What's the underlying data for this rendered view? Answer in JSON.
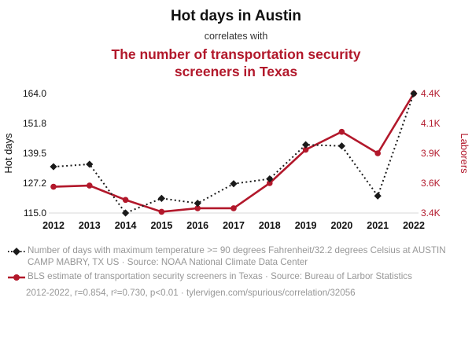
{
  "header": {
    "title": "Hot days in Austin",
    "subtitle": "correlates with",
    "red_title": "The number of transportation security screeners in Texas"
  },
  "colors": {
    "accent_red": "#b2182b",
    "series_black": "#1a1a1a",
    "muted_gray": "#979797"
  },
  "chart_data": {
    "type": "line",
    "title": "Hot days in Austin correlates with the number of transportation security screeners in Texas",
    "x": [
      2012,
      2013,
      2014,
      2015,
      2016,
      2017,
      2018,
      2019,
      2020,
      2021,
      2022
    ],
    "x_ticks": [
      "2012",
      "2013",
      "2014",
      "2015",
      "2016",
      "2017",
      "2018",
      "2019",
      "2020",
      "2021",
      "2022"
    ],
    "series": [
      {
        "name": "Hot days (days with max temp >= 90F at Austin Camp Mabry)",
        "axis": "left",
        "style": "dotted-diamond",
        "color": "#1a1a1a",
        "values": [
          134,
          135,
          115,
          121,
          119,
          127,
          129,
          143,
          142.5,
          122,
          164
        ]
      },
      {
        "name": "Laborers (BLS estimate of transportation security screeners in Texas)",
        "axis": "right",
        "style": "solid-circle",
        "color": "#b2182b",
        "values": [
          3620,
          3630,
          3510,
          3410,
          3440,
          3440,
          3650,
          3930,
          4080,
          3900,
          4400
        ]
      }
    ],
    "left_axis": {
      "label": "Hot days",
      "min": 115,
      "max": 164,
      "ticks": [
        "164.0",
        "151.8",
        "139.5",
        "127.2",
        "115.0"
      ]
    },
    "right_axis": {
      "label": "Laborers",
      "min": 3400,
      "max": 4400,
      "ticks": [
        "4.4K",
        "4.1K",
        "3.9K",
        "3.6K",
        "3.4K"
      ]
    },
    "grid": false,
    "legend_position": "bottom"
  },
  "legend": [
    {
      "marker": "black-diamond-dotted-line",
      "text": "Number of days with maximum temperature >= 90 degrees Fahrenheit/32.2 degrees Celsius at AUSTIN CAMP MABRY, TX US · Source: NOAA National Climate Data Center"
    },
    {
      "marker": "red-circle-solid-line",
      "text": "BLS estimate of transportation security screeners in Texas · Source: Bureau of Larbor Statistics"
    }
  ],
  "footer": {
    "text": "2012-2022, r=0.854, r²=0.730, p<0.01 · tylervigen.com/spurious/correlation/32056"
  }
}
